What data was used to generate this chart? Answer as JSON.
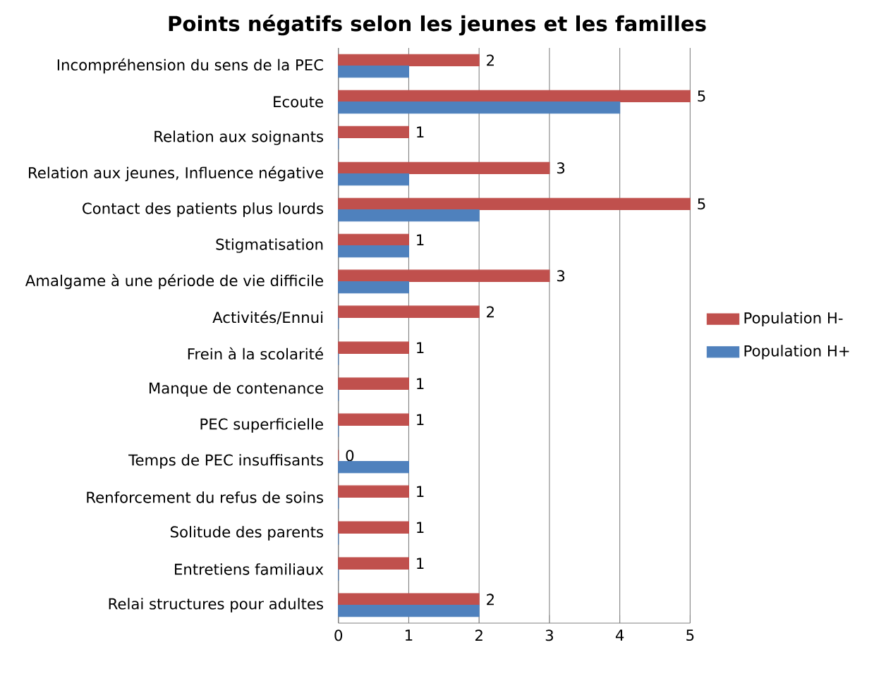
{
  "chart_data": {
    "type": "bar",
    "orientation": "horizontal",
    "title": "Points négatifs selon les jeunes et les familles",
    "categories": [
      "Incompréhension du sens de la PEC",
      "Ecoute",
      "Relation aux soignants",
      "Relation aux jeunes, Influence négative",
      "Contact des patients plus lourds",
      "Stigmatisation",
      "Amalgame à une période de vie difficile",
      "Activités/Ennui",
      "Frein à la scolarité",
      "Manque de contenance",
      "PEC superficielle",
      "Temps de PEC insuffisants",
      "Renforcement du refus de soins",
      "Solitude des parents",
      "Entretiens familiaux",
      "Relai structures pour adultes"
    ],
    "series": [
      {
        "name": "Population H-",
        "color": "#c0504d",
        "values": [
          2,
          5,
          1,
          3,
          5,
          1,
          3,
          2,
          1,
          1,
          1,
          0,
          1,
          1,
          1,
          2
        ],
        "value_labels": [
          "2",
          "5",
          "1",
          "3",
          "5",
          "1",
          "3",
          "2",
          "1",
          "1",
          "1",
          "0",
          "1",
          "1",
          "1",
          "2"
        ]
      },
      {
        "name": "Population H+",
        "color": "#4f81bd",
        "values": [
          1,
          4,
          0,
          1,
          2,
          1,
          1,
          0,
          0,
          0,
          0,
          1,
          0,
          0,
          0,
          2
        ]
      }
    ],
    "xlim": [
      0,
      5
    ],
    "xticks": [
      0,
      1,
      2,
      3,
      4,
      5
    ],
    "grid": "x",
    "legend": "right"
  }
}
